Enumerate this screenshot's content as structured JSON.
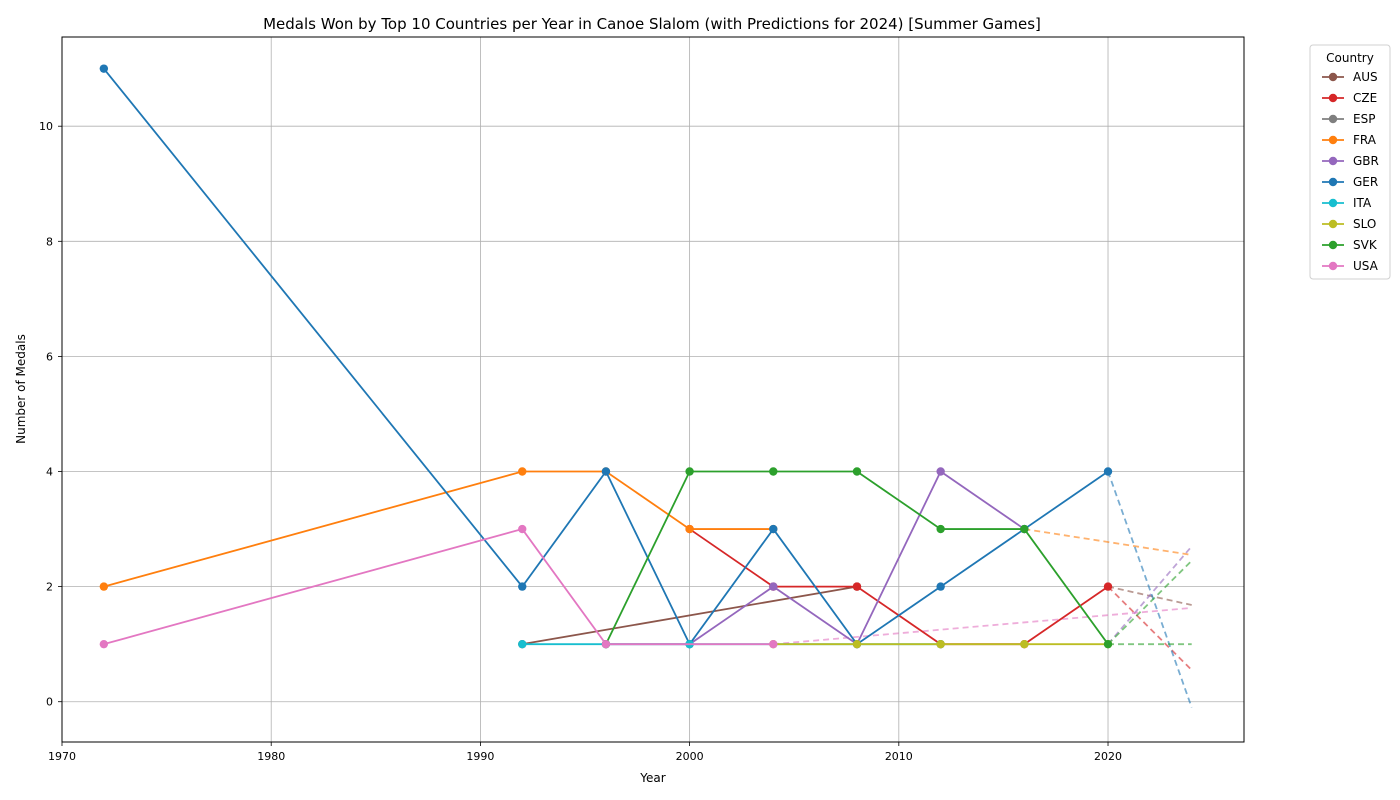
{
  "chart_data": {
    "type": "line",
    "title": "Medals Won by Top 10 Countries per Year in Canoe Slalom (with Predictions for 2024) [Summer Games]",
    "xlabel": "Year",
    "ylabel": "Number of Medals",
    "xlim": [
      1970,
      2026.5
    ],
    "ylim": [
      -0.7,
      11.55
    ],
    "x_ticks": [
      1970,
      1980,
      1990,
      2000,
      2010,
      2020
    ],
    "y_ticks": [
      0,
      2,
      4,
      6,
      8,
      10
    ],
    "grid": true,
    "legend_title": "Country",
    "legend_position": "outside-top-right",
    "series": [
      {
        "name": "AUS",
        "color": "#8c564b",
        "points": [
          [
            1992,
            1
          ],
          [
            2008,
            2
          ]
        ],
        "prediction": [
          [
            2020,
            2
          ],
          [
            2024,
            1.68
          ]
        ]
      },
      {
        "name": "CZE",
        "color": "#d62728",
        "points": [
          [
            2000,
            3
          ],
          [
            2004,
            2
          ],
          [
            2008,
            2
          ],
          [
            2012,
            1
          ],
          [
            2016,
            1
          ],
          [
            2020,
            2
          ]
        ],
        "prediction": [
          [
            2020,
            2
          ],
          [
            2024,
            0.55
          ]
        ]
      },
      {
        "name": "ESP",
        "color": "#7f7f7f",
        "points": [],
        "prediction": []
      },
      {
        "name": "FRA",
        "color": "#ff7f0e",
        "points": [
          [
            1972,
            2
          ],
          [
            1992,
            4
          ],
          [
            1996,
            4
          ],
          [
            2000,
            3
          ],
          [
            2004,
            3
          ]
        ],
        "prediction": [
          [
            2016,
            3
          ],
          [
            2024,
            2.55
          ]
        ]
      },
      {
        "name": "GBR",
        "color": "#9467bd",
        "points": [
          [
            1996,
            1
          ],
          [
            2000,
            1
          ],
          [
            2004,
            2
          ],
          [
            2008,
            1
          ],
          [
            2012,
            4
          ],
          [
            2016,
            3
          ]
        ],
        "prediction": [
          [
            2020,
            1
          ],
          [
            2024,
            2.7
          ]
        ]
      },
      {
        "name": "GER",
        "color": "#1f77b4",
        "points": [
          [
            1972,
            11
          ],
          [
            1992,
            2
          ],
          [
            1996,
            4
          ],
          [
            2000,
            1
          ],
          [
            2004,
            3
          ],
          [
            2008,
            1
          ],
          [
            2012,
            2
          ],
          [
            2016,
            3
          ],
          [
            2020,
            4
          ]
        ],
        "prediction": [
          [
            2020,
            4
          ],
          [
            2024,
            -0.1
          ]
        ]
      },
      {
        "name": "ITA",
        "color": "#17becf",
        "points": [
          [
            1992,
            1
          ],
          [
            1996,
            1
          ],
          [
            2000,
            1
          ],
          [
            2012,
            1
          ]
        ],
        "prediction": []
      },
      {
        "name": "SLO",
        "color": "#bcbd22",
        "points": [
          [
            2004,
            1
          ],
          [
            2008,
            1
          ],
          [
            2012,
            1
          ],
          [
            2016,
            1
          ],
          [
            2020,
            1
          ]
        ],
        "prediction": []
      },
      {
        "name": "SVK",
        "color": "#2ca02c",
        "points": [
          [
            1996,
            1
          ],
          [
            2000,
            4
          ],
          [
            2004,
            4
          ],
          [
            2008,
            4
          ],
          [
            2012,
            3
          ],
          [
            2016,
            3
          ],
          [
            2020,
            1
          ]
        ],
        "prediction": [
          [
            2020,
            1
          ],
          [
            2024,
            2.45
          ]
        ]
      },
      {
        "name": "USA",
        "color": "#e377c2",
        "points": [
          [
            1972,
            1
          ],
          [
            1992,
            3
          ],
          [
            1996,
            1
          ],
          [
            2004,
            1
          ]
        ],
        "prediction": [
          [
            2004,
            1
          ],
          [
            2024,
            1.63
          ]
        ]
      }
    ],
    "extra_predictions": [
      {
        "color": "#2ca02c",
        "points": [
          [
            2020,
            1
          ],
          [
            2024,
            1
          ]
        ]
      }
    ]
  }
}
